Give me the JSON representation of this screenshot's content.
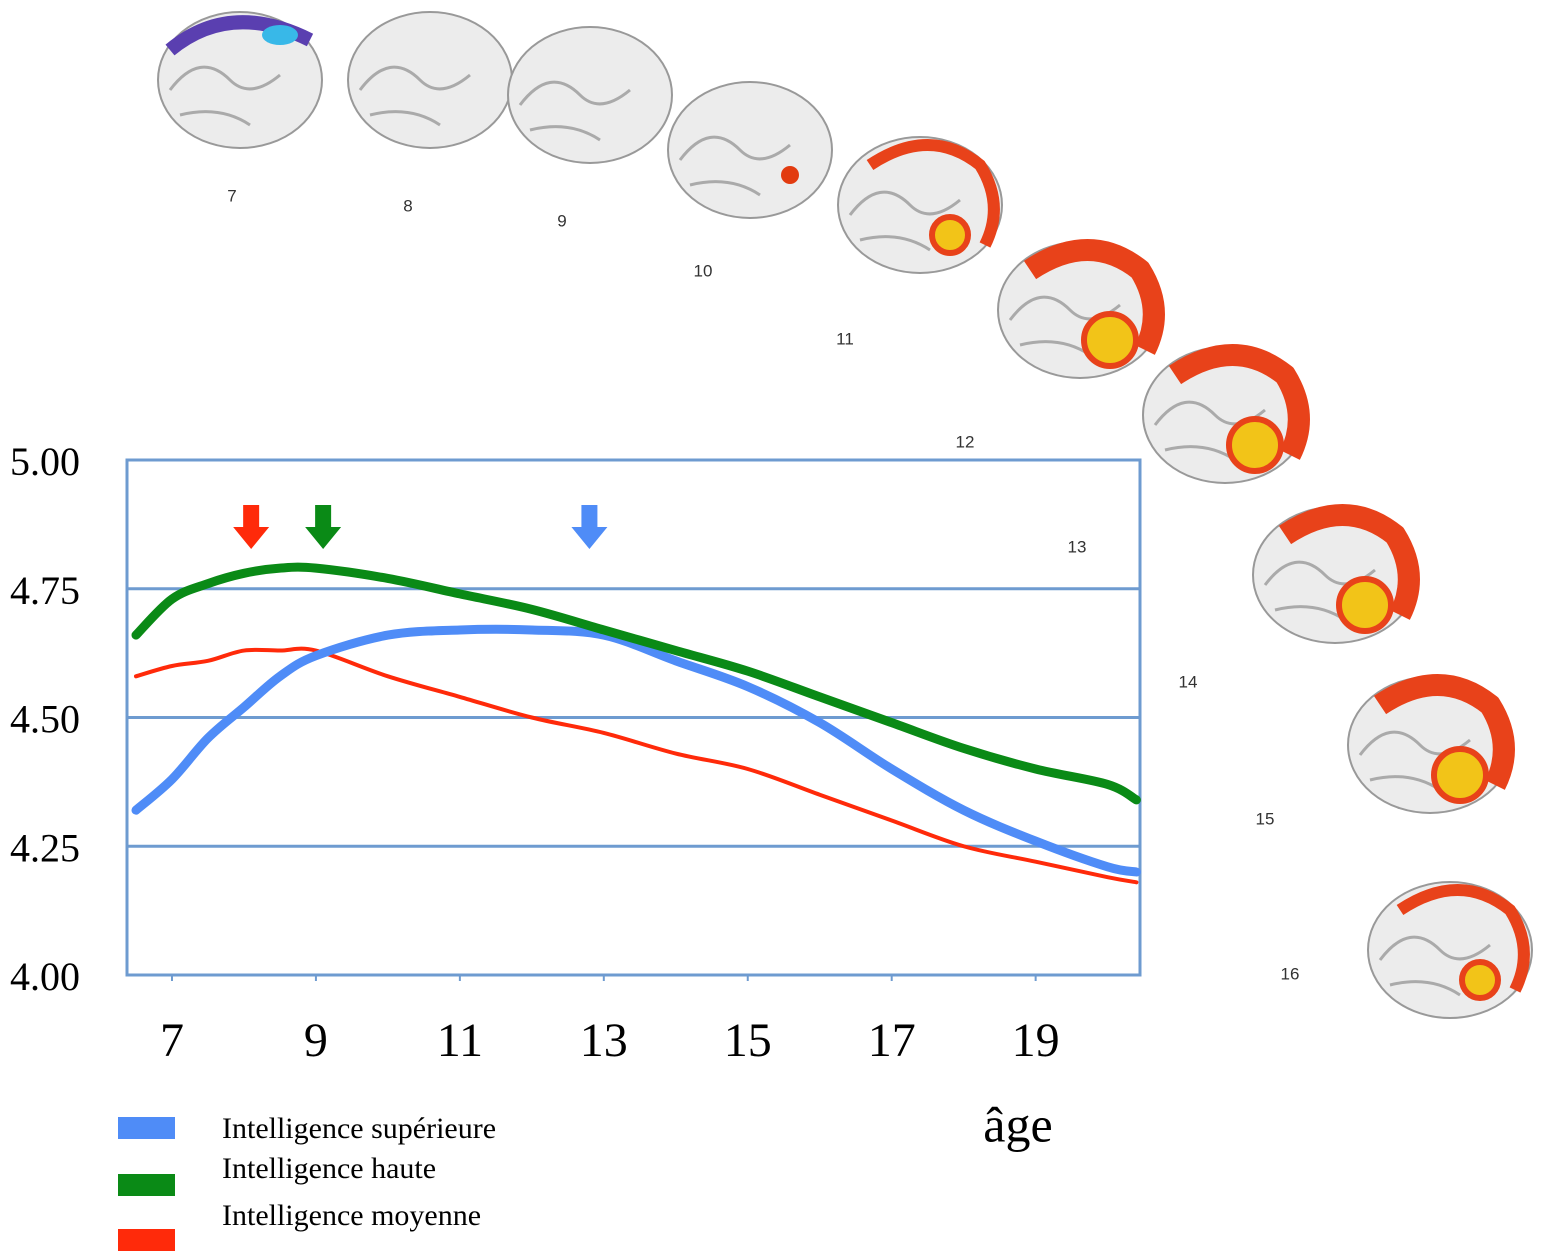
{
  "chart_data": {
    "type": "line",
    "x_label": "âge",
    "x": [
      6.5,
      7,
      7.5,
      8,
      8.5,
      9,
      10,
      11,
      12,
      13,
      14,
      15,
      16,
      17,
      18,
      19,
      20,
      20.4
    ],
    "xlim": [
      6.375,
      20.45
    ],
    "xticks": [
      7,
      9,
      11,
      13,
      15,
      17,
      19
    ],
    "ylim": [
      4,
      5
    ],
    "yticks": [
      {
        "value": 4,
        "label": "4.00"
      },
      {
        "value": 4.25,
        "label": "4.25"
      },
      {
        "value": 4.5,
        "label": "4.50"
      },
      {
        "value": 4.75,
        "label": "4.75"
      },
      {
        "value": 5,
        "label": "5.00"
      }
    ],
    "grid": true,
    "series": [
      {
        "name": "Intelligence supérieure",
        "color": "#4f8cf7",
        "peak": 12.8,
        "values": [
          4.32,
          4.38,
          4.46,
          4.52,
          4.58,
          4.62,
          4.66,
          4.67,
          4.67,
          4.66,
          4.61,
          4.56,
          4.49,
          4.4,
          4.32,
          4.26,
          4.21,
          4.2
        ]
      },
      {
        "name": "Intelligence haute",
        "color": "#0a8a16",
        "peak": 9.1,
        "values": [
          4.66,
          4.73,
          4.76,
          4.78,
          4.79,
          4.79,
          4.77,
          4.74,
          4.71,
          4.67,
          4.63,
          4.59,
          4.54,
          4.49,
          4.44,
          4.4,
          4.37,
          4.34
        ]
      },
      {
        "name": "Intelligence moyenne",
        "color": "#ff2a0a",
        "peak": 8.1,
        "values": [
          4.58,
          4.6,
          4.61,
          4.63,
          4.63,
          4.63,
          4.58,
          4.54,
          4.5,
          4.47,
          4.43,
          4.4,
          4.35,
          4.3,
          4.25,
          4.22,
          4.19,
          4.18
        ]
      }
    ]
  },
  "brain_ages": [
    7,
    8,
    9,
    10,
    11,
    12,
    13,
    14,
    15,
    16
  ]
}
